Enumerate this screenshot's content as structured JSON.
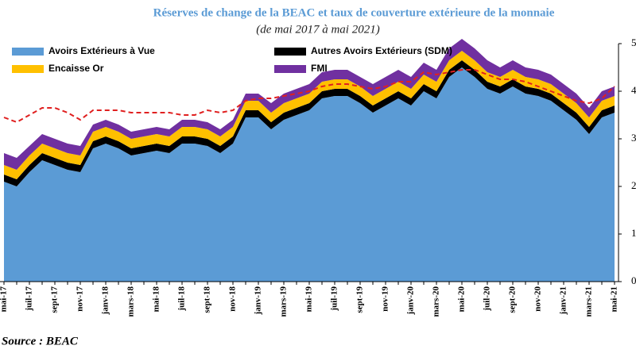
{
  "chart_data": {
    "type": "stacked_area",
    "title": "Réserves de change de la BEAC et taux de couverture extérieure de la monnaie",
    "subtitle": "(de mai 2017 à mai 2021)",
    "source": "Source : BEAC",
    "categories": [
      "mai-17",
      null,
      "juil-17",
      null,
      "sept-17",
      null,
      "nov-17",
      null,
      "janv-18",
      null,
      "mars-18",
      null,
      "mai-18",
      null,
      "juil-18",
      null,
      "sept-18",
      null,
      "nov-18",
      null,
      "janv-19",
      null,
      "mars-19",
      null,
      "mai-19",
      null,
      "juil-19",
      null,
      "sept-19",
      null,
      "nov-19",
      null,
      "janv-20",
      null,
      "mars-20",
      null,
      "mai-20",
      null,
      "juil-20",
      null,
      "sept-20",
      null,
      "nov-20",
      null,
      "janv-21",
      null,
      "mars-21",
      null,
      "mai-21"
    ],
    "series": [
      {
        "name": "Avoirs Extérieurs à Vue",
        "color": "#5b9bd5",
        "values": [
          2.1,
          2.0,
          2.3,
          2.55,
          2.45,
          2.35,
          2.3,
          2.8,
          2.9,
          2.8,
          2.65,
          2.7,
          2.75,
          2.7,
          2.9,
          2.9,
          2.85,
          2.7,
          2.9,
          3.45,
          3.45,
          3.2,
          3.4,
          3.5,
          3.6,
          3.85,
          3.9,
          3.9,
          3.75,
          3.55,
          3.7,
          3.85,
          3.7,
          4.0,
          3.85,
          4.3,
          4.5,
          4.3,
          4.05,
          3.95,
          4.1,
          3.95,
          3.9,
          3.8,
          3.6,
          3.4,
          3.1,
          3.45,
          3.55
        ]
      },
      {
        "name": "Autres Avoirs Extérieurs (SDM)",
        "color": "#000000",
        "values": [
          0.15,
          0.15,
          0.15,
          0.15,
          0.15,
          0.15,
          0.15,
          0.15,
          0.15,
          0.15,
          0.15,
          0.15,
          0.15,
          0.15,
          0.15,
          0.15,
          0.15,
          0.15,
          0.15,
          0.15,
          0.15,
          0.15,
          0.15,
          0.15,
          0.15,
          0.15,
          0.15,
          0.15,
          0.15,
          0.15,
          0.15,
          0.15,
          0.15,
          0.15,
          0.15,
          0.15,
          0.15,
          0.15,
          0.15,
          0.15,
          0.15,
          0.15,
          0.15,
          0.15,
          0.15,
          0.15,
          0.15,
          0.15,
          0.15
        ]
      },
      {
        "name": "Encaisse Or",
        "color": "#ffc000",
        "values": [
          0.2,
          0.2,
          0.2,
          0.2,
          0.2,
          0.2,
          0.2,
          0.2,
          0.2,
          0.2,
          0.2,
          0.2,
          0.2,
          0.2,
          0.2,
          0.2,
          0.2,
          0.2,
          0.2,
          0.2,
          0.2,
          0.2,
          0.2,
          0.2,
          0.2,
          0.2,
          0.2,
          0.2,
          0.2,
          0.2,
          0.2,
          0.2,
          0.2,
          0.2,
          0.2,
          0.2,
          0.2,
          0.2,
          0.2,
          0.2,
          0.2,
          0.2,
          0.2,
          0.2,
          0.2,
          0.2,
          0.2,
          0.2,
          0.2
        ]
      },
      {
        "name": "FMI",
        "color": "#7030a0",
        "values": [
          0.25,
          0.25,
          0.2,
          0.2,
          0.2,
          0.2,
          0.2,
          0.15,
          0.15,
          0.15,
          0.15,
          0.15,
          0.15,
          0.15,
          0.15,
          0.15,
          0.15,
          0.15,
          0.15,
          0.15,
          0.15,
          0.2,
          0.2,
          0.2,
          0.2,
          0.2,
          0.2,
          0.2,
          0.2,
          0.25,
          0.25,
          0.25,
          0.25,
          0.25,
          0.25,
          0.25,
          0.25,
          0.25,
          0.25,
          0.2,
          0.2,
          0.2,
          0.2,
          0.2,
          0.2,
          0.2,
          0.2,
          0.2,
          0.2
        ]
      }
    ],
    "line": {
      "color": "#e02020",
      "values": [
        3.45,
        3.35,
        3.5,
        3.65,
        3.65,
        3.55,
        3.4,
        3.6,
        3.6,
        3.6,
        3.55,
        3.55,
        3.55,
        3.55,
        3.5,
        3.5,
        3.6,
        3.55,
        3.6,
        3.8,
        3.85,
        3.85,
        3.9,
        3.95,
        4.0,
        4.1,
        4.15,
        4.15,
        4.1,
        4.05,
        4.1,
        4.2,
        4.2,
        4.4,
        4.35,
        4.4,
        4.45,
        4.45,
        4.35,
        4.25,
        4.25,
        4.2,
        4.1,
        4.0,
        3.9,
        3.8,
        3.75,
        3.85,
        4.1
      ]
    },
    "ylim": [
      0,
      5
    ],
    "yticks": [
      0,
      1,
      2,
      3,
      4,
      5
    ]
  }
}
